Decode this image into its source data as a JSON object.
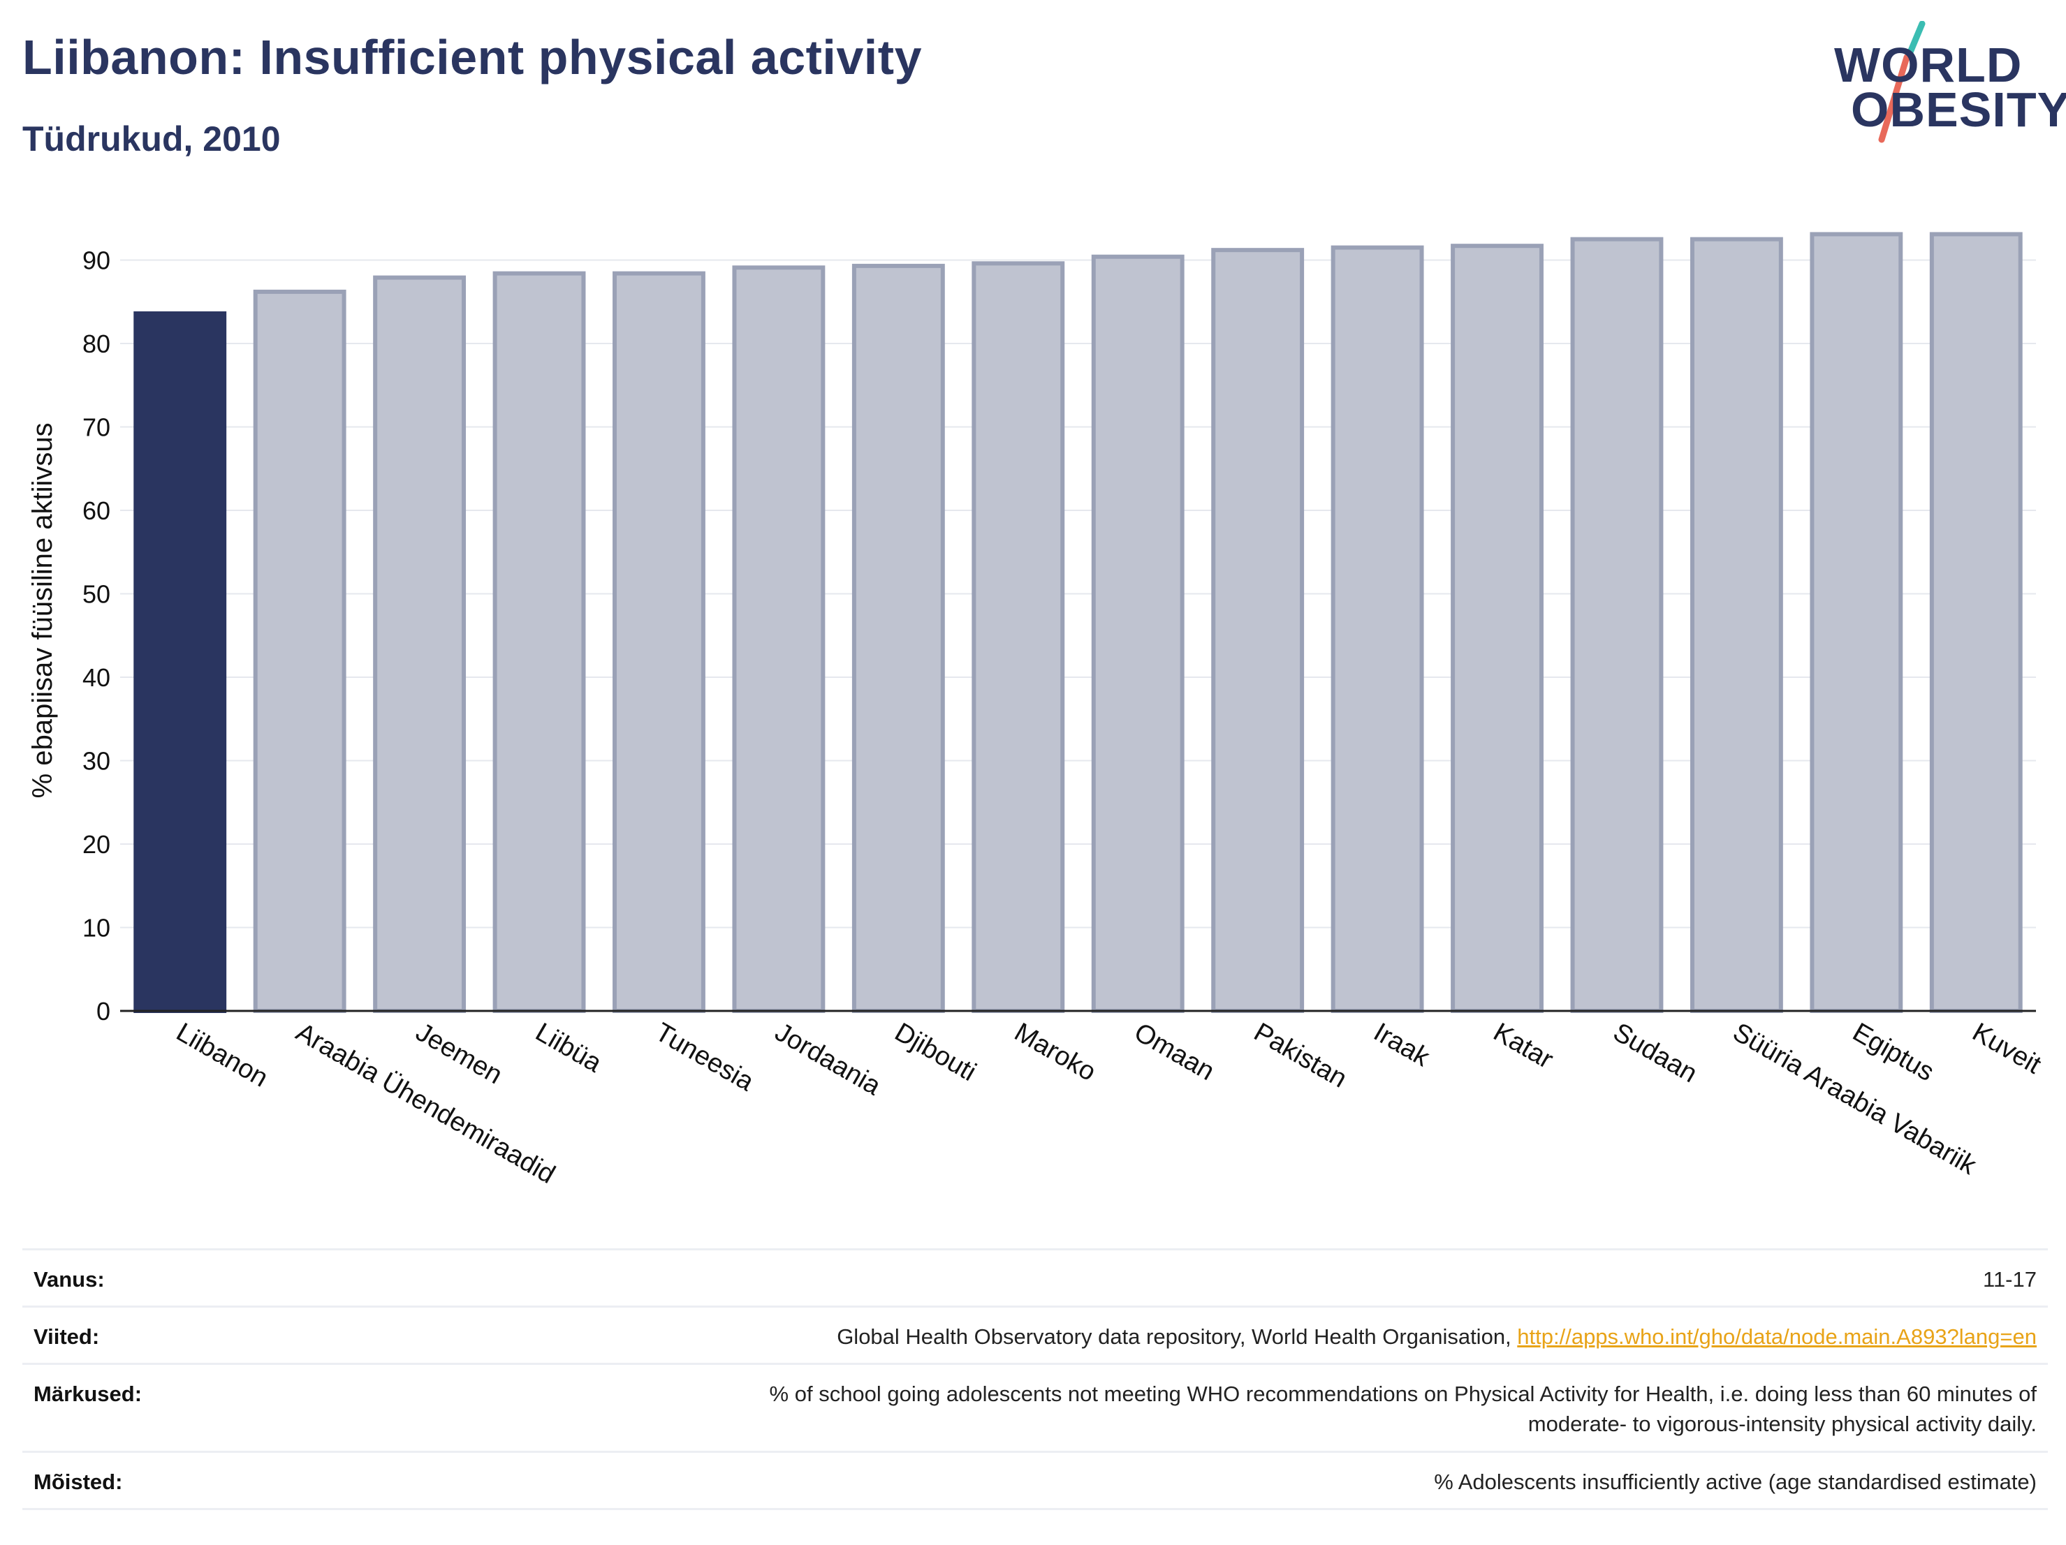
{
  "header": {
    "title": "Liibanon: Insufficient physical activity",
    "subtitle": "Tüdrukud, 2010"
  },
  "logo": {
    "line1": "WORLD",
    "line2": "OBESITY"
  },
  "colors": {
    "highlight": "#2a3560",
    "bar_fill": "#bfc3d0",
    "bar_stroke": "#9aa1b6",
    "grid": "#e6e8ee",
    "logo_teal": "#3bbdb2",
    "logo_coral": "#e8695a"
  },
  "chart_data": {
    "type": "bar",
    "ylabel": "% ebapiisav füüsiline aktiivsus",
    "ylim": [
      0,
      93
    ],
    "yticks": [
      0,
      10,
      20,
      30,
      40,
      50,
      60,
      70,
      80,
      90
    ],
    "grid": true,
    "highlight_category": "Liibanon",
    "categories": [
      "Liibanon",
      "Araabia Ühendemiraadid",
      "Jeemen",
      "Liibüa",
      "Tuneesia",
      "Jordaania",
      "Djibouti",
      "Maroko",
      "Omaan",
      "Pakistan",
      "Iraak",
      "Katar",
      "Sudaan",
      "Süüria Araabia Vabariik",
      "Egiptus",
      "Kuveit"
    ],
    "values": [
      83.6,
      86.2,
      87.9,
      88.4,
      88.4,
      89.1,
      89.3,
      89.6,
      90.4,
      91.2,
      91.5,
      91.7,
      92.5,
      92.5,
      93.1,
      93.1
    ]
  },
  "meta": {
    "age_key": "Vanus:",
    "age_val": "11-17",
    "refs_key": "Viited:",
    "refs_text": "Global Health Observatory data repository, World Health Organisation, ",
    "refs_link": "http://apps.who.int/gho/data/node.main.A893?lang=en",
    "notes_key": "Märkused:",
    "notes_line1": "% of school going adolescents not meeting WHO recommendations on Physical Activity for Health, i.e. doing less than 60 minutes of",
    "notes_line2": "moderate- to vigorous-intensity physical activity daily.",
    "defs_key": "Mõisted:",
    "defs_val": "% Adolescents insufficiently active (age standardised estimate)"
  }
}
